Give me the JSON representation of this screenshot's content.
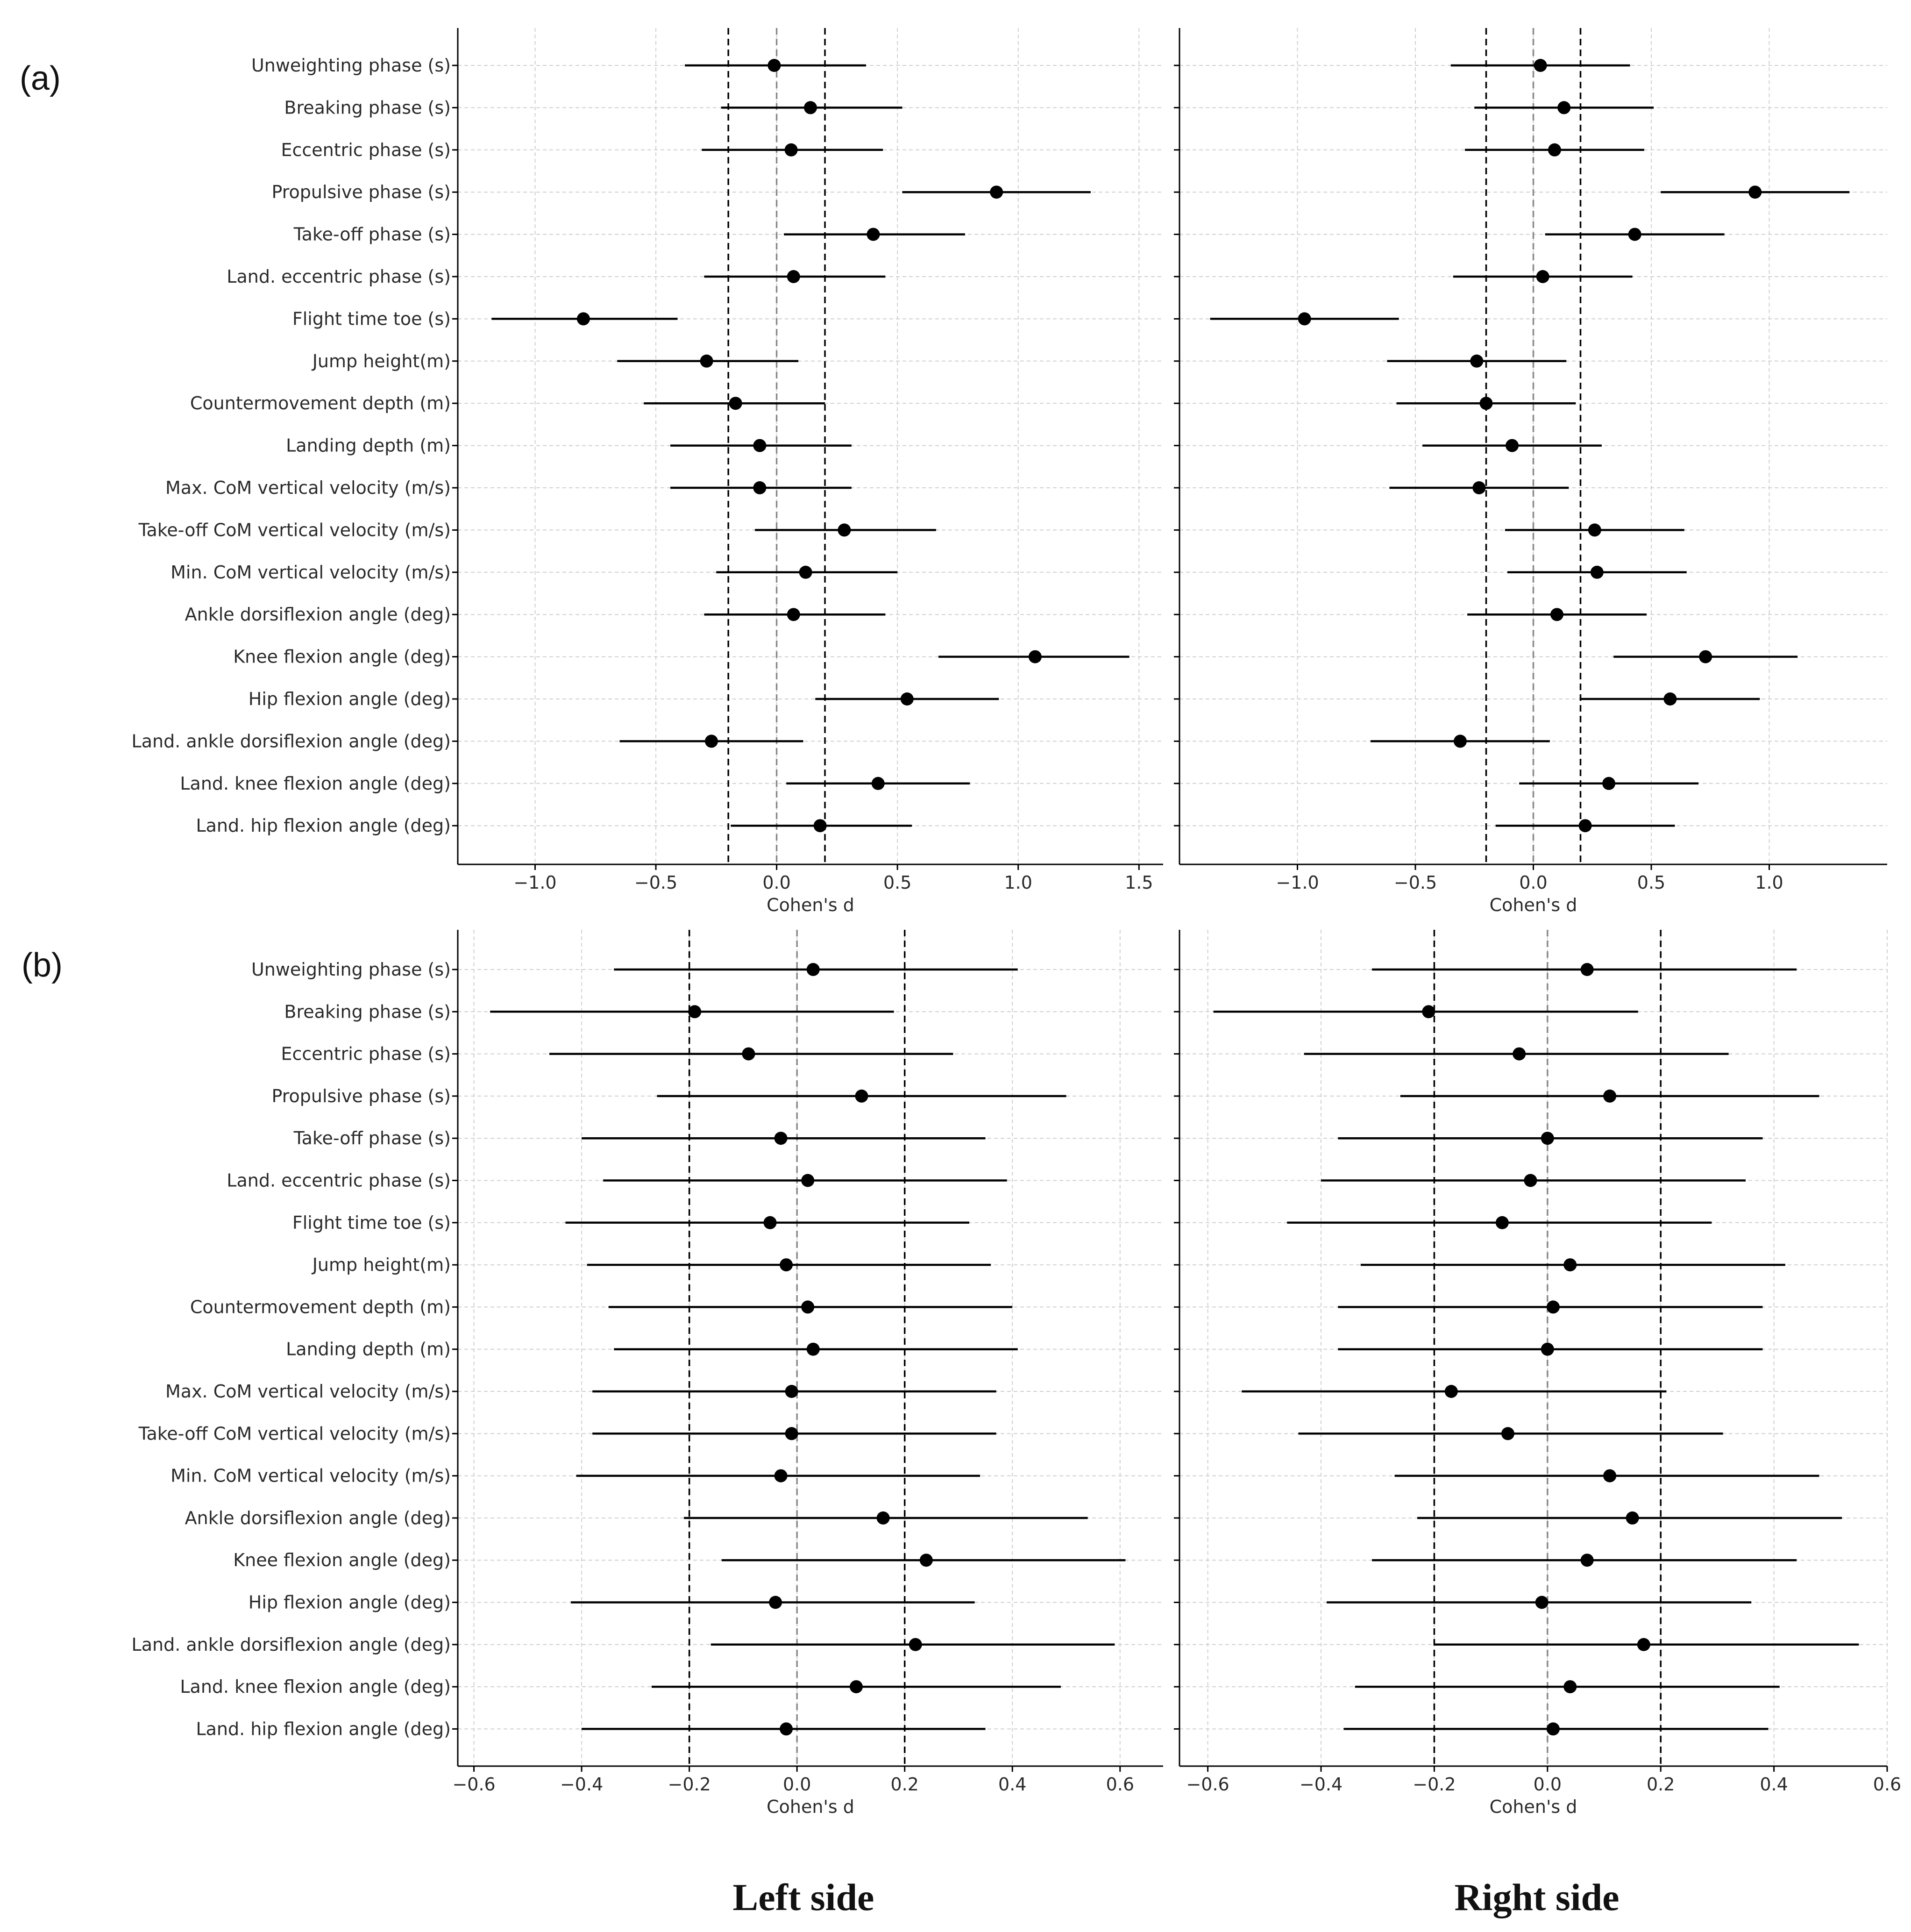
{
  "panel_labels": [
    "(a)",
    "(b)"
  ],
  "captions": {
    "left": "Left side",
    "right": "Right side"
  },
  "colors": {
    "line": "#000000",
    "grid": "#d0d0d0",
    "ref_zero": "#8a8a8a",
    "ref_threshold": "#000000"
  },
  "categories": [
    "Unweighting phase (s)",
    "Breaking phase (s)",
    "Eccentric phase (s)",
    "Propulsive phase (s)",
    "Take-off phase (s)",
    "Land. eccentric phase (s)",
    "Flight time toe (s)",
    "Jump height(m)",
    "Countermovement depth (m)",
    "Landing depth (m)",
    "Max. CoM vertical velocity (m/s)",
    "Take-off CoM vertical velocity (m/s)",
    "Min. CoM vertical velocity (m/s)",
    "Ankle dorsiflexion angle (deg)",
    "Knee flexion angle (deg)",
    "Hip flexion angle (deg)",
    "Land. ankle dorsiflexion angle (deg)",
    "Land. knee flexion angle (deg)",
    "Land. hip flexion angle (deg)"
  ],
  "chart_data": [
    {
      "id": "a-left",
      "type": "scatter",
      "row": "(a)",
      "side": "Left side",
      "xlabel": "Cohen's d",
      "xlim": [
        -1.32,
        1.6
      ],
      "xticks": [
        -1.0,
        -0.5,
        0.0,
        0.5,
        1.0,
        1.5
      ],
      "xtick_labels": [
        "−1.0",
        "−0.5",
        "0.0",
        "0.5",
        "1.0",
        "1.5"
      ],
      "ref_lines": {
        "zero": 0.0,
        "thresholds": [
          -0.2,
          0.2
        ]
      },
      "grid": true,
      "estimates": [
        -0.01,
        0.14,
        0.06,
        0.91,
        0.4,
        0.07,
        -0.8,
        -0.29,
        -0.17,
        -0.07,
        -0.07,
        0.28,
        0.12,
        0.07,
        1.07,
        0.54,
        -0.27,
        0.42,
        0.18
      ],
      "ci_low": [
        -0.38,
        -0.23,
        -0.31,
        0.52,
        0.03,
        -0.3,
        -1.18,
        -0.66,
        -0.55,
        -0.44,
        -0.44,
        -0.09,
        -0.25,
        -0.3,
        0.67,
        0.16,
        -0.65,
        0.04,
        -0.19
      ],
      "ci_high": [
        0.37,
        0.52,
        0.44,
        1.3,
        0.78,
        0.45,
        -0.41,
        0.09,
        0.2,
        0.31,
        0.31,
        0.66,
        0.5,
        0.45,
        1.46,
        0.92,
        0.11,
        0.8,
        0.56
      ]
    },
    {
      "id": "a-right",
      "type": "scatter",
      "row": "(a)",
      "side": "Right side",
      "xlabel": "Cohen's d",
      "xlim": [
        -1.5,
        1.5
      ],
      "xticks": [
        -1.0,
        -0.5,
        0.0,
        0.5,
        1.0
      ],
      "xtick_labels": [
        "−1.0",
        "−0.5",
        "0.0",
        "0.5",
        "1.0"
      ],
      "ref_lines": {
        "zero": 0.0,
        "thresholds": [
          -0.2,
          0.2
        ]
      },
      "grid": true,
      "estimates": [
        0.03,
        0.13,
        0.09,
        0.94,
        0.43,
        0.04,
        -0.97,
        -0.24,
        -0.2,
        -0.09,
        -0.23,
        0.26,
        0.27,
        0.1,
        0.73,
        0.58,
        -0.31,
        0.32,
        0.22
      ],
      "ci_low": [
        -0.35,
        -0.25,
        -0.29,
        0.54,
        0.05,
        -0.34,
        -1.37,
        -0.62,
        -0.58,
        -0.47,
        -0.61,
        -0.12,
        -0.11,
        -0.28,
        0.34,
        0.2,
        -0.69,
        -0.06,
        -0.16
      ],
      "ci_high": [
        0.41,
        0.51,
        0.47,
        1.34,
        0.81,
        0.42,
        -0.57,
        0.14,
        0.18,
        0.29,
        0.15,
        0.64,
        0.65,
        0.48,
        1.12,
        0.96,
        0.07,
        0.7,
        0.6
      ]
    },
    {
      "id": "b-left",
      "type": "scatter",
      "row": "(b)",
      "side": "Left side",
      "xlabel": "Cohen's d",
      "xlim": [
        -0.63,
        0.68
      ],
      "xticks": [
        -0.6,
        -0.4,
        -0.2,
        0.0,
        0.2,
        0.4,
        0.6
      ],
      "xtick_labels": [
        "−0.6",
        "−0.4",
        "−0.2",
        "0.0",
        "0.2",
        "0.4",
        "0.6"
      ],
      "ref_lines": {
        "zero": 0.0,
        "thresholds": [
          -0.2,
          0.2
        ]
      },
      "grid": true,
      "estimates": [
        0.03,
        -0.19,
        -0.09,
        0.12,
        -0.03,
        0.02,
        -0.05,
        -0.02,
        0.02,
        0.03,
        -0.01,
        -0.01,
        -0.03,
        0.16,
        0.24,
        -0.04,
        0.22,
        0.11,
        -0.02
      ],
      "ci_low": [
        -0.34,
        -0.57,
        -0.46,
        -0.26,
        -0.4,
        -0.36,
        -0.43,
        -0.39,
        -0.35,
        -0.34,
        -0.38,
        -0.38,
        -0.41,
        -0.21,
        -0.14,
        -0.42,
        -0.16,
        -0.27,
        -0.4
      ],
      "ci_high": [
        0.41,
        0.18,
        0.29,
        0.5,
        0.35,
        0.39,
        0.32,
        0.36,
        0.4,
        0.41,
        0.37,
        0.37,
        0.34,
        0.54,
        0.61,
        0.33,
        0.59,
        0.49,
        0.35
      ]
    },
    {
      "id": "b-right",
      "type": "scatter",
      "row": "(b)",
      "side": "Right side",
      "xlabel": "Cohen's d",
      "xlim": [
        -0.65,
        0.6
      ],
      "xticks": [
        -0.6,
        -0.4,
        -0.2,
        0.0,
        0.2,
        0.4,
        0.6
      ],
      "xtick_labels": [
        "−0.6",
        "−0.4",
        "−0.2",
        "0.0",
        "0.2",
        "0.4",
        "0.6"
      ],
      "ref_lines": {
        "zero": 0.0,
        "thresholds": [
          -0.2,
          0.2
        ]
      },
      "grid": true,
      "estimates": [
        0.07,
        -0.21,
        -0.05,
        0.11,
        0.0,
        -0.03,
        -0.08,
        0.04,
        0.01,
        0.0,
        -0.17,
        -0.07,
        0.11,
        0.15,
        0.07,
        -0.01,
        0.17,
        0.04,
        0.01
      ],
      "ci_low": [
        -0.31,
        -0.59,
        -0.43,
        -0.26,
        -0.37,
        -0.4,
        -0.46,
        -0.33,
        -0.37,
        -0.37,
        -0.54,
        -0.44,
        -0.27,
        -0.23,
        -0.31,
        -0.39,
        -0.2,
        -0.34,
        -0.36
      ],
      "ci_high": [
        0.44,
        0.16,
        0.32,
        0.48,
        0.38,
        0.35,
        0.29,
        0.42,
        0.38,
        0.38,
        0.21,
        0.31,
        0.48,
        0.52,
        0.44,
        0.36,
        0.55,
        0.41,
        0.39
      ]
    }
  ]
}
